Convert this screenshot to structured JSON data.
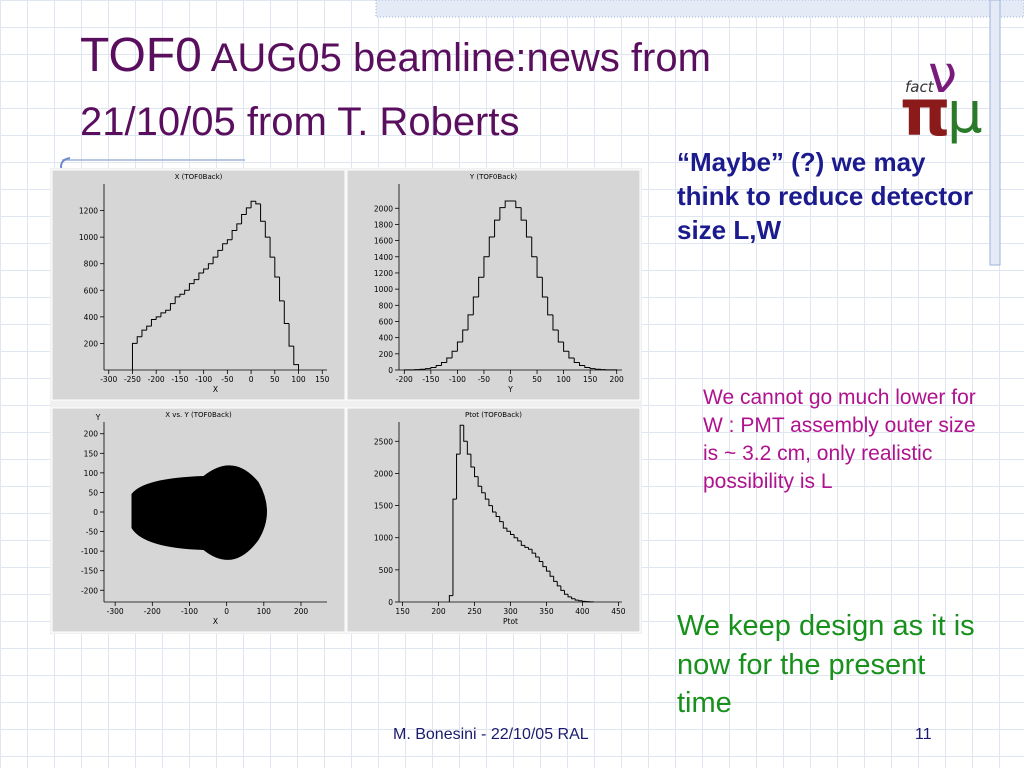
{
  "title": {
    "main": "TOF0",
    "line1": "AUG05 beamline:news from",
    "line2": "21/10/05 from T. Roberts"
  },
  "logo": {
    "word": "fact",
    "letters": [
      "π",
      "ν",
      "μ"
    ]
  },
  "notes": [
    "“Maybe”  (?) we may think to reduce detector size L,W",
    "We cannot go much lower for W :  PMT assembly outer size is ~ 3.2 cm, only realistic possibility is L",
    "We keep design as it is now for the present time"
  ],
  "footer": {
    "author": "M. Bonesini - 22/10/05 RAL",
    "page": "11"
  },
  "plots": [
    {
      "type": "histogram",
      "title": "X (TOF0Back)",
      "xlabel": "X",
      "bins": [
        -250,
        -240,
        -230,
        -220,
        -210,
        -200,
        -190,
        -180,
        -170,
        -160,
        -150,
        -140,
        -130,
        -120,
        -110,
        -100,
        -90,
        -80,
        -70,
        -60,
        -50,
        -40,
        -30,
        -20,
        -10,
        0,
        10,
        20,
        30,
        40,
        50,
        60,
        70,
        80,
        90,
        100
      ],
      "values": [
        200,
        250,
        300,
        330,
        380,
        400,
        430,
        450,
        500,
        550,
        570,
        600,
        650,
        680,
        730,
        760,
        800,
        850,
        900,
        950,
        980,
        1050,
        1100,
        1170,
        1220,
        1270,
        1250,
        1120,
        1000,
        850,
        700,
        520,
        350,
        180,
        40
      ],
      "xlim": [
        -310,
        160
      ],
      "xticks": [
        -300,
        -250,
        -200,
        -150,
        -100,
        -50,
        0,
        50,
        100,
        150
      ],
      "ylim": [
        0,
        1400
      ],
      "yticks": [
        200,
        400,
        600,
        800,
        1000,
        1200
      ]
    },
    {
      "type": "histogram",
      "title": "Y (TOF0Back)",
      "xlabel": "Y",
      "bins": [
        -200,
        -190,
        -180,
        -170,
        -160,
        -150,
        -140,
        -130,
        -120,
        -110,
        -100,
        -90,
        -80,
        -70,
        -60,
        -50,
        -40,
        -30,
        -20,
        -10,
        0,
        10,
        20,
        30,
        40,
        50,
        60,
        70,
        80,
        90,
        100,
        110,
        120,
        130,
        140,
        150,
        160,
        170,
        180,
        190,
        200
      ],
      "values": [
        1,
        2,
        5,
        9,
        17,
        31,
        55,
        92,
        149,
        232,
        346,
        495,
        682,
        902,
        1147,
        1401,
        1644,
        1853,
        2008,
        2090,
        2090,
        2008,
        1853,
        1644,
        1401,
        1147,
        902,
        682,
        495,
        346,
        232,
        149,
        92,
        55,
        31,
        17,
        9,
        5,
        2,
        1
      ],
      "xlim": [
        -210,
        210
      ],
      "xticks": [
        -200,
        -150,
        -100,
        -50,
        0,
        50,
        100,
        150,
        200
      ],
      "ylim": [
        0,
        2300
      ],
      "yticks": [
        0,
        200,
        400,
        600,
        800,
        1000,
        1200,
        1400,
        1600,
        1800,
        2000
      ]
    },
    {
      "type": "scatter",
      "title": "X vs. Y (TOF0Back)",
      "xlabel": "X",
      "ylabel": "Y",
      "xlim": [
        -330,
        270
      ],
      "xticks": [
        -300,
        -200,
        -100,
        0,
        100,
        200
      ],
      "ylim": [
        -230,
        230
      ],
      "yticks": [
        -200,
        -150,
        -100,
        -50,
        0,
        50,
        100,
        150,
        200
      ]
    },
    {
      "type": "histogram",
      "title": "Ptot (TOF0Back)",
      "xlabel": "Ptot",
      "bins": [
        215,
        220,
        225,
        230,
        235,
        240,
        245,
        250,
        255,
        260,
        265,
        270,
        275,
        280,
        285,
        290,
        295,
        300,
        305,
        310,
        315,
        320,
        325,
        330,
        335,
        340,
        345,
        350,
        355,
        360,
        365,
        370,
        375,
        380,
        385,
        390,
        395,
        400,
        405,
        410,
        415
      ],
      "values": [
        100,
        1600,
        2300,
        2750,
        2500,
        2300,
        2100,
        1950,
        1800,
        1700,
        1600,
        1500,
        1400,
        1330,
        1250,
        1150,
        1100,
        1050,
        1000,
        950,
        880,
        850,
        820,
        760,
        700,
        630,
        550,
        480,
        400,
        320,
        250,
        180,
        120,
        80,
        50,
        30,
        20,
        10,
        5,
        2
      ],
      "xlim": [
        145,
        455
      ],
      "xticks": [
        150,
        200,
        250,
        300,
        350,
        400,
        450
      ],
      "ylim": [
        0,
        2800
      ],
      "yticks": [
        0,
        500,
        1000,
        1500,
        2000,
        2500
      ]
    }
  ]
}
